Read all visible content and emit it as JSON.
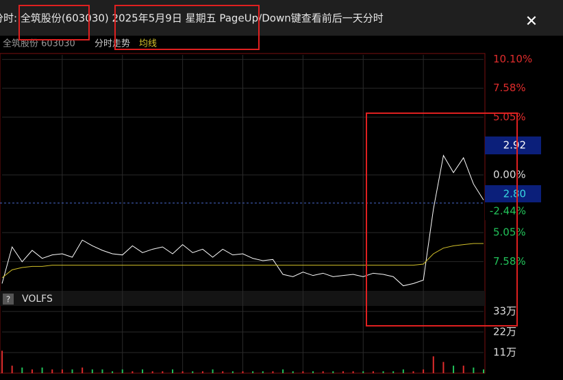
{
  "header": {
    "title": "分时: 全筑股份(603030) 2025年5月9日 星期五  PageUp/Down键查看前后一天分时",
    "close": "✕"
  },
  "subheader": {
    "stock": "全筑股份 603030",
    "mode": "分时走势",
    "avg": "均线"
  },
  "chart_data": {
    "type": "line",
    "ylim": [
      -9.9,
      10.5
    ],
    "yticks": [
      {
        "value": 10.1,
        "label": "10.10%"
      },
      {
        "value": 7.58,
        "label": "7.58%"
      },
      {
        "value": 5.05,
        "label": "5.05%"
      },
      {
        "value": 0,
        "label": "0.00%"
      },
      {
        "value": -5.05,
        "label": "5.05%"
      },
      {
        "value": -7.58,
        "label": "7.58%"
      }
    ],
    "price_tags": [
      "2.92",
      "2.80",
      "-2.44%"
    ],
    "series": [
      {
        "name": "price",
        "color": "#ffffff",
        "values": [
          -9.5,
          -6.3,
          -7.6,
          -6.6,
          -7.3,
          -7.0,
          -6.9,
          -7.2,
          -5.7,
          -6.2,
          -6.6,
          -6.9,
          -7.0,
          -6.2,
          -6.8,
          -6.5,
          -6.3,
          -6.9,
          -6.1,
          -6.8,
          -6.5,
          -7.2,
          -6.5,
          -7.0,
          -6.9,
          -7.3,
          -7.5,
          -7.4,
          -8.7,
          -8.9,
          -8.5,
          -8.8,
          -8.6,
          -8.9,
          -8.8,
          -8.7,
          -8.9,
          -8.6,
          -8.7,
          -8.9,
          -9.7,
          -9.5,
          -9.2,
          -3.0,
          1.7,
          0.2,
          1.5,
          -0.8,
          -2.2
        ]
      },
      {
        "name": "均线",
        "color": "#d4c22a",
        "values": [
          -9.0,
          -8.3,
          -8.1,
          -8.0,
          -8.0,
          -7.9,
          -7.9,
          -7.9,
          -7.9,
          -7.9,
          -7.9,
          -7.9,
          -7.9,
          -7.9,
          -7.9,
          -7.9,
          -7.9,
          -7.9,
          -7.9,
          -7.9,
          -7.9,
          -7.9,
          -7.9,
          -7.9,
          -7.9,
          -7.9,
          -7.9,
          -7.9,
          -7.9,
          -7.9,
          -7.9,
          -7.9,
          -7.9,
          -7.9,
          -7.9,
          -7.9,
          -7.9,
          -7.9,
          -7.9,
          -7.9,
          -7.9,
          -7.9,
          -7.8,
          -6.9,
          -6.4,
          -6.2,
          -6.1,
          -6.0,
          -6.0
        ]
      }
    ],
    "volume": {
      "label": "VOLFS",
      "help": "?",
      "ylim": [
        0,
        40
      ],
      "yticks": [
        {
          "value": 33,
          "label": "33万"
        },
        {
          "value": 22,
          "label": "22万"
        },
        {
          "value": 11,
          "label": "11万"
        }
      ],
      "values": [
        12,
        4,
        3,
        2,
        3,
        2,
        2,
        2,
        3,
        2,
        2,
        1,
        2,
        1,
        2,
        1,
        1,
        2,
        1,
        1,
        1,
        2,
        1,
        1,
        1,
        1,
        1,
        1,
        2,
        1,
        1,
        1,
        1,
        1,
        1,
        1,
        1,
        1,
        1,
        1,
        2,
        1,
        2,
        9,
        6,
        4,
        4,
        3,
        2
      ]
    }
  }
}
